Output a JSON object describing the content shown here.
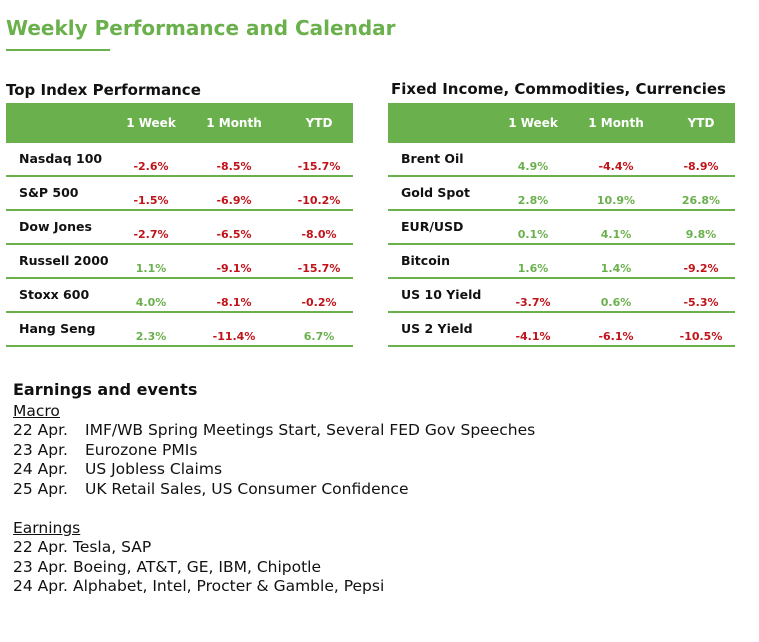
{
  "header": {
    "title": "Weekly Performance and Calendar"
  },
  "index_table": {
    "title": "Top Index Performance",
    "columns": [
      "1 Week",
      "1 Month",
      "YTD"
    ],
    "rows": [
      {
        "name": "Nasdaq 100",
        "values": [
          "-2.6%",
          "-8.5%",
          "-15.7%"
        ]
      },
      {
        "name": "S&P 500",
        "values": [
          "-1.5%",
          "-6.9%",
          "-10.2%"
        ]
      },
      {
        "name": "Dow Jones",
        "values": [
          "-2.7%",
          "-6.5%",
          "-8.0%"
        ]
      },
      {
        "name": "Russell 2000",
        "values": [
          "1.1%",
          "-9.1%",
          "-15.7%"
        ]
      },
      {
        "name": "Stoxx 600",
        "values": [
          "4.0%",
          "-8.1%",
          "-0.2%"
        ]
      },
      {
        "name": "Hang Seng",
        "values": [
          "2.3%",
          "-11.4%",
          "6.7%"
        ]
      }
    ]
  },
  "fixed_table": {
    "title": "Fixed Income, Commodities, Currencies",
    "columns": [
      "1 Week",
      "1 Month",
      "YTD"
    ],
    "rows": [
      {
        "name": "Brent Oil",
        "values": [
          "4.9%",
          "-4.4%",
          "-8.9%"
        ]
      },
      {
        "name": "Gold Spot",
        "values": [
          "2.8%",
          "10.9%",
          "26.8%"
        ]
      },
      {
        "name": "EUR/USD",
        "values": [
          "0.1%",
          "4.1%",
          "9.8%"
        ]
      },
      {
        "name": "Bitcoin",
        "values": [
          "1.6%",
          "1.4%",
          "-9.2%"
        ]
      },
      {
        "name": "US 10 Yield",
        "values": [
          "-3.7%",
          "0.6%",
          "-5.3%"
        ]
      },
      {
        "name": "US 2 Yield",
        "values": [
          "-4.1%",
          "-6.1%",
          "-10.5%"
        ]
      }
    ]
  },
  "colors": {
    "accent": "#6ab04c",
    "negative": "#c0131a",
    "positive": "#6ab04c"
  },
  "events": {
    "heading": "Earnings and events",
    "macro": {
      "label": "Macro",
      "items": [
        {
          "date": "22 Apr.",
          "text": "IMF/WB Spring Meetings Start, Several FED Gov Speeches"
        },
        {
          "date": "23 Apr.",
          "text": "Eurozone PMIs"
        },
        {
          "date": "24 Apr.",
          "text": "US Jobless Claims"
        },
        {
          "date": "25 Apr.",
          "text": "UK Retail Sales, US Consumer Confidence"
        }
      ]
    },
    "earnings": {
      "label": "Earnings",
      "items": [
        {
          "date": "22 Apr.",
          "text": "Tesla, SAP"
        },
        {
          "date": "23 Apr.",
          "text": "Boeing, AT&T, GE, IBM, Chipotle"
        },
        {
          "date": "24 Apr.",
          "text": "Alphabet, Intel, Procter & Gamble, Pepsi"
        }
      ]
    }
  }
}
